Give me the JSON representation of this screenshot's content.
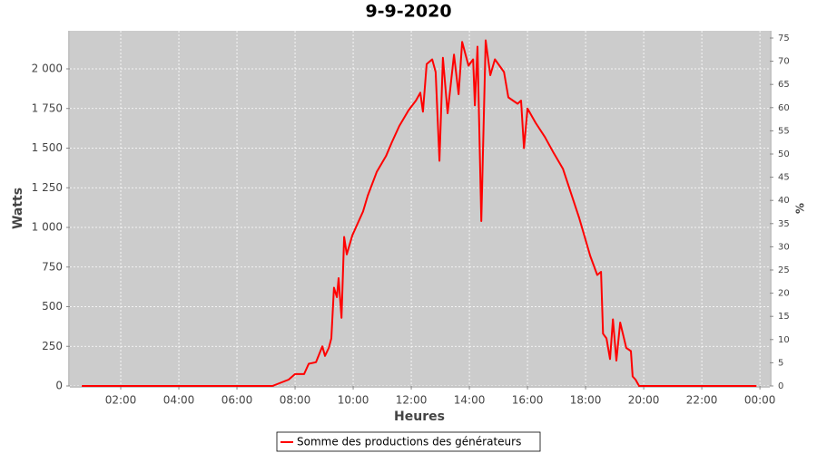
{
  "chart_data": {
    "type": "line",
    "title": "9-9-2020",
    "x_label": "Heures",
    "y_label": "Watts",
    "y2_label": "%",
    "x": [
      0.66,
      7.22,
      7.78,
      8.0,
      8.31,
      8.47,
      8.72,
      8.94,
      9.03,
      9.16,
      9.25,
      9.34,
      9.44,
      9.5,
      9.6,
      9.69,
      9.78,
      9.97,
      10.34,
      10.5,
      10.81,
      11.13,
      11.34,
      11.59,
      11.91,
      12.16,
      12.31,
      12.4,
      12.53,
      12.72,
      12.84,
      12.97,
      13.09,
      13.25,
      13.47,
      13.63,
      13.75,
      13.97,
      14.13,
      14.19,
      14.28,
      14.41,
      14.56,
      14.72,
      14.88,
      15.19,
      15.34,
      15.66,
      15.78,
      15.88,
      16.0,
      16.28,
      16.6,
      16.9,
      17.22,
      17.4,
      17.78,
      18.16,
      18.4,
      18.53,
      18.6,
      18.72,
      18.84,
      18.94,
      19.06,
      19.19,
      19.4,
      19.56,
      19.62,
      19.72,
      19.84,
      23.88
    ],
    "series": [
      {
        "name": "Somme des productions des  générateurs",
        "color": "#ff0000",
        "values": [
          0,
          0,
          40,
          75,
          75,
          140,
          150,
          250,
          190,
          240,
          300,
          620,
          560,
          680,
          430,
          940,
          830,
          950,
          1100,
          1200,
          1350,
          1450,
          1540,
          1640,
          1740,
          1800,
          1850,
          1730,
          2030,
          2060,
          1980,
          1420,
          2070,
          1720,
          2090,
          1840,
          2170,
          2020,
          2060,
          1770,
          2140,
          1040,
          2180,
          1960,
          2060,
          1980,
          1820,
          1780,
          1800,
          1500,
          1750,
          1660,
          1570,
          1470,
          1370,
          1270,
          1060,
          820,
          700,
          720,
          330,
          300,
          170,
          420,
          160,
          400,
          240,
          220,
          60,
          40,
          0,
          0
        ]
      }
    ],
    "xlim": [
      0.25,
      24.34
    ],
    "xticks": [
      {
        "value": 2,
        "label": "02:00"
      },
      {
        "value": 4,
        "label": "04:00"
      },
      {
        "value": 6,
        "label": "06:00"
      },
      {
        "value": 8,
        "label": "08:00"
      },
      {
        "value": 10,
        "label": "10:00"
      },
      {
        "value": 12,
        "label": "12:00"
      },
      {
        "value": 14,
        "label": "14:00"
      },
      {
        "value": 16,
        "label": "16:00"
      },
      {
        "value": 18,
        "label": "18:00"
      },
      {
        "value": 20,
        "label": "20:00"
      },
      {
        "value": 22,
        "label": "22:00"
      },
      {
        "value": 24,
        "label": "00:00"
      }
    ],
    "ylim": [
      0,
      2240
    ],
    "yticks": [
      0,
      250,
      500,
      750,
      {
        "value": 1000,
        "label": "1 000"
      },
      {
        "value": 1250,
        "label": "1 250"
      },
      {
        "value": 1500,
        "label": "1 500"
      },
      {
        "value": 1750,
        "label": "1 750"
      },
      {
        "value": 2000,
        "label": "2 000"
      }
    ],
    "y2lim": [
      0,
      76.56
    ],
    "y2ticks": [
      0,
      5,
      10,
      15,
      20,
      25,
      30,
      35,
      40,
      45,
      50,
      55,
      60,
      65,
      70,
      75
    ],
    "grid": true,
    "legend": "bottom"
  }
}
